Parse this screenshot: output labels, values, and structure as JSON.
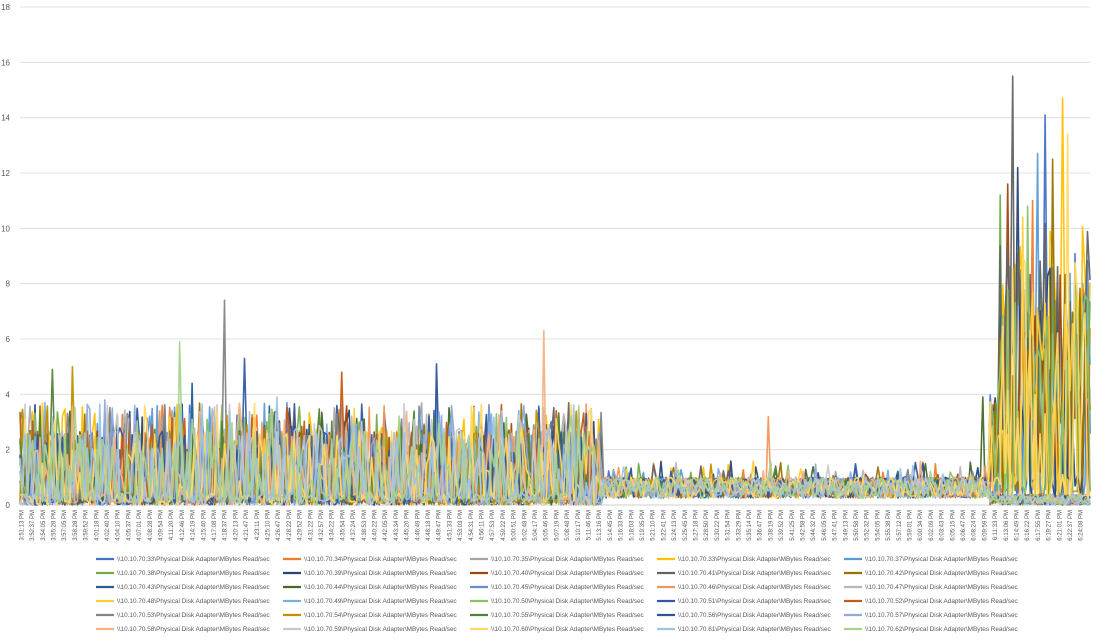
{
  "chart_data": {
    "type": "line",
    "ylim": [
      0,
      18
    ],
    "yticks": [
      0,
      2,
      4,
      6,
      8,
      10,
      12,
      14,
      16,
      18
    ],
    "grid": true,
    "legend_position": "bottom",
    "x_labels": [
      "3:51:13 PM",
      "3:52:37 PM",
      "3:54:05 PM",
      "3:55:28 PM",
      "3:57:05 PM",
      "3:58:28 PM",
      "3:59:52 PM",
      "4:01:18 PM",
      "4:02:40 PM",
      "4:04:10 PM",
      "4:05:37 PM",
      "4:07:01 PM",
      "4:08:28 PM",
      "4:09:54 PM",
      "4:11:20 PM",
      "4:12:46 PM",
      "4:14:19 PM",
      "4:15:40 PM",
      "4:17:08 PM",
      "4:18:37 PM",
      "4:20:13 PM",
      "4:21:47 PM",
      "4:23:11 PM",
      "4:25:10 PM",
      "4:26:47 PM",
      "4:28:22 PM",
      "4:29:52 PM",
      "4:31:22 PM",
      "4:32:57 PM",
      "4:34:22 PM",
      "4:35:54 PM",
      "4:37:24 PM",
      "4:38:53 PM",
      "4:40:22 PM",
      "4:42:05 PM",
      "4:43:34 PM",
      "4:45:20 PM",
      "4:46:49 PM",
      "4:48:18 PM",
      "4:49:47 PM",
      "4:51:33 PM",
      "4:53:03 PM",
      "4:54:31 PM",
      "4:56:11 PM",
      "4:57:53 PM",
      "4:59:22 PM",
      "5:00:51 PM",
      "5:02:48 PM",
      "5:04:17 PM",
      "5:05:46 PM",
      "5:07:19 PM",
      "5:08:48 PM",
      "5:10:17 PM",
      "5:11:46 PM",
      "5:13:16 PM",
      "5:14:45 PM",
      "5:16:33 PM",
      "5:18:03 PM",
      "5:19:35 PM",
      "5:21:10 PM",
      "5:22:41 PM",
      "5:24:13 PM",
      "5:25:45 PM",
      "5:27:18 PM",
      "5:28:50 PM",
      "5:30:22 PM",
      "5:31:54 PM",
      "5:33:29 PM",
      "5:35:14 PM",
      "5:36:47 PM",
      "5:38:19 PM",
      "5:39:52 PM",
      "5:41:25 PM",
      "5:42:58 PM",
      "5:44:32 PM",
      "5:46:05 PM",
      "5:47:41 PM",
      "5:49:13 PM",
      "5:50:58 PM",
      "5:52:32 PM",
      "5:54:05 PM",
      "5:55:38 PM",
      "5:57:12 PM",
      "5:59:01 PM",
      "6:00:34 PM",
      "6:02:09 PM",
      "6:03:43 PM",
      "6:05:15 PM",
      "6:06:47 PM",
      "6:08:24 PM",
      "6:09:59 PM",
      "6:11:33 PM",
      "6:13:06 PM",
      "6:14:49 PM",
      "6:16:22 PM",
      "6:17:55 PM",
      "6:19:27 PM",
      "6:21:01 PM",
      "6:22:37 PM",
      "6:24:08 PM"
    ],
    "series": [
      {
        "name": "\\\\10.10.70.33\\Physical Disk Adapter\\MBytes Read/sec",
        "color": "#4472c4",
        "peak": 14.1,
        "peak_x": 0.958,
        "seed": 1
      },
      {
        "name": "\\\\10.10.70.34\\Physical Disk Adapter\\MBytes Read/sec",
        "color": "#ed7d31",
        "peak": 11.0,
        "peak_x": 0.946,
        "seed": 2
      },
      {
        "name": "\\\\10.10.70.35\\Physical Disk Adapter\\MBytes Read/sec",
        "color": "#a5a5a5",
        "peak": 2.5,
        "peak_x": 0.3,
        "seed": 3
      },
      {
        "name": "\\\\10.10.70.33\\Physical Disk Adapter\\MBytes Read/sec",
        "color": "#ffc000",
        "peak": 14.7,
        "peak_x": 0.975,
        "seed": 4
      },
      {
        "name": "\\\\10.10.70.37\\Physical Disk Adapter\\MBytes Read/sec",
        "color": "#5b9bd5",
        "peak": 12.7,
        "peak_x": 0.951,
        "seed": 5
      },
      {
        "name": "\\\\10.10.70.38\\Physical Disk Adapter\\MBytes Read/sec",
        "color": "#70ad47",
        "peak": 11.2,
        "peak_x": 0.915,
        "seed": 6
      },
      {
        "name": "\\\\10.10.70.39\\Physical Disk Adapter\\MBytes Read/sec",
        "color": "#264478",
        "peak": 12.2,
        "peak_x": 0.933,
        "seed": 7
      },
      {
        "name": "\\\\10.10.70.40\\Physical Disk Adapter\\MBytes Read/sec",
        "color": "#9e480e",
        "peak": 11.6,
        "peak_x": 0.923,
        "seed": 8
      },
      {
        "name": "\\\\10.10.70.41\\Physical Disk Adapter\\MBytes Read/sec",
        "color": "#636363",
        "peak": 15.5,
        "peak_x": 0.928,
        "seed": 9
      },
      {
        "name": "\\\\10.10.70.42\\Physical Disk Adapter\\MBytes Read/sec",
        "color": "#997300",
        "peak": 12.5,
        "peak_x": 0.965,
        "seed": 10
      },
      {
        "name": "\\\\10.10.70.43\\Physical Disk Adapter\\MBytes Read/sec",
        "color": "#255e91",
        "peak": 4.4,
        "peak_x": 0.16,
        "seed": 11
      },
      {
        "name": "\\\\10.10.70.44\\Physical Disk Adapter\\MBytes Read/sec",
        "color": "#43682b",
        "peak": 3.9,
        "peak_x": 0.9,
        "seed": 12
      },
      {
        "name": "\\\\10.10.70.45\\Physical Disk Adapter\\MBytes Read/sec",
        "color": "#698ed0",
        "peak": 3.7,
        "peak_x": 0.25,
        "seed": 13
      },
      {
        "name": "\\\\10.10.70.46\\Physical Disk Adapter\\MBytes Read/sec",
        "color": "#f1975a",
        "peak": 3.2,
        "peak_x": 0.7,
        "seed": 14
      },
      {
        "name": "\\\\10.10.70.47\\Physical Disk Adapter\\MBytes Read/sec",
        "color": "#b7b7b7",
        "peak": 3.0,
        "peak_x": 0.11,
        "seed": 15
      },
      {
        "name": "\\\\10.10.70.48\\Physical Disk Adapter\\MBytes Read/sec",
        "color": "#ffcd33",
        "peak": 10.4,
        "peak_x": 0.938,
        "seed": 16
      },
      {
        "name": "\\\\10.10.70.49\\Physical Disk Adapter\\MBytes Read/sec",
        "color": "#7cafdd",
        "peak": 4.2,
        "peak_x": 0.39,
        "seed": 17
      },
      {
        "name": "\\\\10.10.70.50\\Physical Disk Adapter\\MBytes Read/sec",
        "color": "#8cc168",
        "peak": 10.8,
        "peak_x": 0.942,
        "seed": 18
      },
      {
        "name": "\\\\10.10.70.51\\Physical Disk Adapter\\MBytes Read/sec",
        "color": "#335aa1",
        "peak": 5.3,
        "peak_x": 0.21,
        "seed": 19
      },
      {
        "name": "\\\\10.10.70.52\\Physical Disk Adapter\\MBytes Read/sec",
        "color": "#c55a11",
        "peak": 4.8,
        "peak_x": 0.3,
        "seed": 20
      },
      {
        "name": "\\\\10.10.70.53\\Physical Disk Adapter\\MBytes Read/sec",
        "color": "#848484",
        "peak": 7.4,
        "peak_x": 0.19,
        "seed": 21
      },
      {
        "name": "\\\\10.10.70.54\\Physical Disk Adapter\\MBytes Read/sec",
        "color": "#bf9000",
        "peak": 5.0,
        "peak_x": 0.05,
        "seed": 22
      },
      {
        "name": "\\\\10.10.70.55\\Physical Disk Adapter\\MBytes Read/sec",
        "color": "#548235",
        "peak": 4.9,
        "peak_x": 0.03,
        "seed": 23
      },
      {
        "name": "\\\\10.10.70.56\\Physical Disk Adapter\\MBytes Read/sec",
        "color": "#2f5597",
        "peak": 5.1,
        "peak_x": 0.39,
        "seed": 24
      },
      {
        "name": "\\\\10.10.70.57\\Physical Disk Adapter\\MBytes Read/sec",
        "color": "#8faadc",
        "peak": 3.8,
        "peak_x": 0.08,
        "seed": 25
      },
      {
        "name": "\\\\10.10.70.58\\Physical Disk Adapter\\MBytes Read/sec",
        "color": "#f4b183",
        "peak": 6.3,
        "peak_x": 0.49,
        "seed": 26
      },
      {
        "name": "\\\\10.10.70.59\\Physical Disk Adapter\\MBytes Read/sec",
        "color": "#c9c9c9",
        "peak": 3.4,
        "peak_x": 0.45,
        "seed": 27
      },
      {
        "name": "\\\\10.10.70.60\\Physical Disk Adapter\\MBytes Read/sec",
        "color": "#ffd966",
        "peak": 13.4,
        "peak_x": 0.98,
        "seed": 28
      },
      {
        "name": "\\\\10.10.70.61\\Physical Disk Adapter\\MBytes Read/sec",
        "color": "#9dc3e6",
        "peak": 3.9,
        "peak_x": 0.24,
        "seed": 29
      },
      {
        "name": "\\\\10.10.70.62\\Physical Disk Adapter\\MBytes Read/sec",
        "color": "#a9d18e",
        "peak": 5.9,
        "peak_x": 0.15,
        "seed": 30
      }
    ]
  }
}
